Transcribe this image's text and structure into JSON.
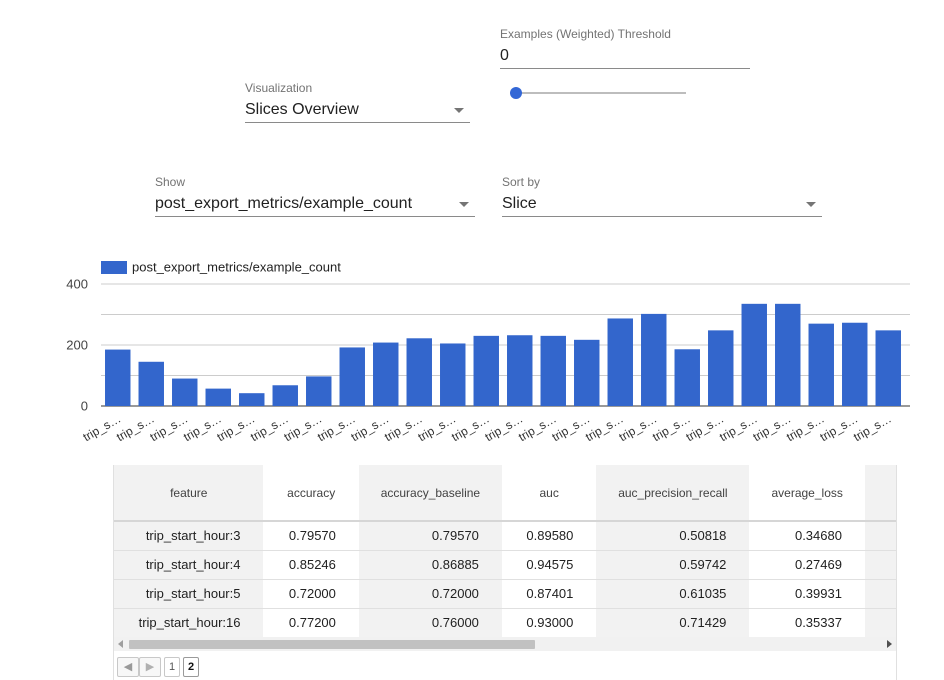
{
  "threshold": {
    "label": "Examples (Weighted) Threshold",
    "value": "0",
    "slider_value": 0
  },
  "visualization": {
    "label": "Visualization",
    "value": "Slices Overview"
  },
  "show": {
    "label": "Show",
    "value": "post_export_metrics/example_count"
  },
  "sort_by": {
    "label": "Sort by",
    "value": "Slice"
  },
  "colors": {
    "bar": "#3366cc",
    "accent": "#3367d6"
  },
  "chart_data": {
    "type": "bar",
    "legend": "post_export_metrics/example_count",
    "categories": [
      "trip_s…",
      "trip_s…",
      "trip_s…",
      "trip_s…",
      "trip_s…",
      "trip_s…",
      "trip_s…",
      "trip_s…",
      "trip_s…",
      "trip_s…",
      "trip_s…",
      "trip_s…",
      "trip_s…",
      "trip_s…",
      "trip_s…",
      "trip_s…",
      "trip_s…",
      "trip_s…",
      "trip_s…",
      "trip_s…",
      "trip_s…",
      "trip_s…",
      "trip_s…",
      "trip_s…"
    ],
    "values": [
      185,
      145,
      90,
      57,
      42,
      68,
      97,
      192,
      208,
      222,
      205,
      230,
      232,
      230,
      217,
      287,
      302,
      186,
      248,
      335,
      335,
      270,
      273,
      248
    ],
    "yticks": [
      "0",
      "200",
      "400"
    ],
    "ylim": [
      0,
      400
    ]
  },
  "table": {
    "columns": [
      "feature",
      "accuracy",
      "accuracy_baseline",
      "auc",
      "auc_precision_recall",
      "average_loss"
    ],
    "rows": [
      [
        "trip_start_hour:3",
        "0.79570",
        "0.79570",
        "0.89580",
        "0.50818",
        "0.34680"
      ],
      [
        "trip_start_hour:4",
        "0.85246",
        "0.86885",
        "0.94575",
        "0.59742",
        "0.27469"
      ],
      [
        "trip_start_hour:5",
        "0.72000",
        "0.72000",
        "0.87401",
        "0.61035",
        "0.39931"
      ],
      [
        "trip_start_hour:16",
        "0.77200",
        "0.76000",
        "0.93000",
        "0.71429",
        "0.35337"
      ]
    ]
  },
  "pager": {
    "prev": "◀",
    "next": "▶",
    "pages": [
      "1",
      "2"
    ],
    "current": "2"
  }
}
